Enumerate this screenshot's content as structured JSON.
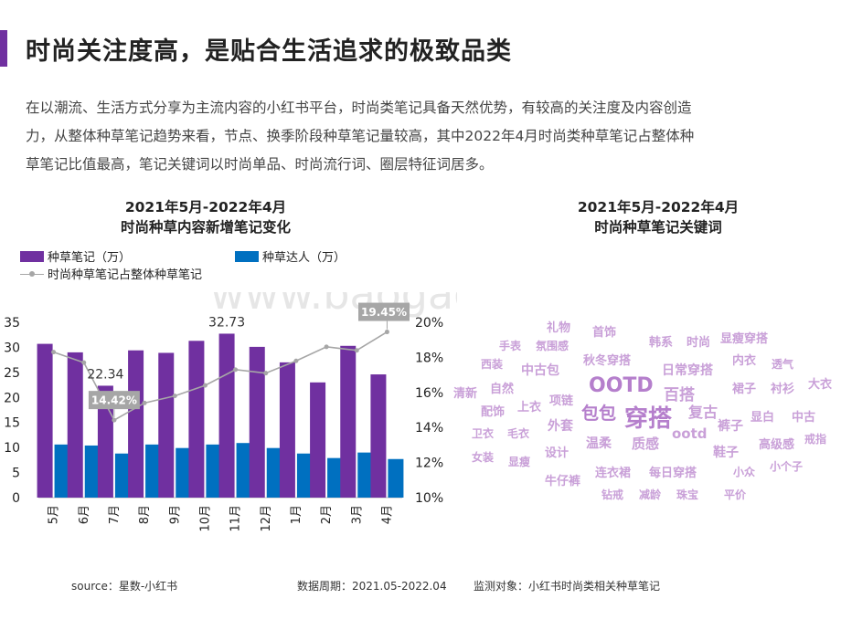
{
  "header": {
    "title": "时尚关注度高，是贴合生活追求的极致品类",
    "accent_color": "#7030a0"
  },
  "intro_lines": [
    "在以潮流、生活方式分享为主流内容的小红书平台，时尚类笔记具备天然优势，有较高的关注度及内容创造",
    "力，从整体种草笔记趋势来看，节点、换季阶段种草笔记量较高，其中2022年4月时尚类种草笔记占整体种",
    "草笔记比值最高，笔记关键词以时尚单品、时尚流行词、圈层特征词居多。"
  ],
  "watermark": "www.baogao8.com",
  "left_chart": {
    "title_line1": "2021年5月-2022年4月",
    "title_line2": "时尚种草内容新增笔记变化"
  },
  "right_chart": {
    "title_line1": "2021年5月-2022年4月",
    "title_line2": "时尚种草笔记关键词"
  },
  "legend": {
    "bar1": "种草笔记（万）",
    "bar2": "种草达人（万）",
    "line": "时尚种草笔记占整体种草笔记"
  },
  "chart_data": {
    "type": "bar",
    "categories": [
      "5月",
      "6月",
      "7月",
      "8月",
      "9月",
      "10月",
      "11月",
      "12月",
      "1月",
      "2月",
      "3月",
      "4月"
    ],
    "series": [
      {
        "name": "种草笔记（万）",
        "type": "bar",
        "axis": "left",
        "color": "#7030a0",
        "values": [
          30.7,
          29.0,
          22.34,
          29.4,
          28.9,
          31.3,
          32.73,
          30.1,
          27.0,
          23.0,
          30.3,
          24.6
        ]
      },
      {
        "name": "种草达人（万）",
        "type": "bar",
        "axis": "left",
        "color": "#0070c0",
        "values": [
          10.6,
          10.4,
          8.8,
          10.6,
          9.9,
          10.6,
          10.9,
          9.9,
          8.8,
          7.9,
          9.0,
          7.7
        ]
      },
      {
        "name": "时尚种草笔记占整体种草笔记",
        "type": "line",
        "axis": "right",
        "color": "#a6a6a6",
        "values": [
          18.3,
          17.7,
          14.42,
          15.4,
          15.8,
          16.4,
          17.3,
          17.1,
          17.8,
          18.6,
          18.4,
          19.45
        ]
      }
    ],
    "y_left": {
      "min": 0,
      "max": 35,
      "ticks": [
        "0",
        "5",
        "10",
        "15",
        "20",
        "25",
        "30",
        "35"
      ]
    },
    "y_right": {
      "min": 10,
      "max": 20,
      "ticks": [
        "10%",
        "12%",
        "14%",
        "16%",
        "18%",
        "20%"
      ]
    },
    "data_labels": [
      {
        "series": 0,
        "index": 2,
        "text": "22.34"
      },
      {
        "series": 0,
        "index": 6,
        "text": "32.73"
      }
    ],
    "callouts": [
      {
        "series": 2,
        "index": 2,
        "text": "14.42%"
      },
      {
        "series": 2,
        "index": 11,
        "text": "19.45%"
      }
    ],
    "grid": false,
    "legend_position": "top-left"
  },
  "keywords": [
    {
      "text": "礼物",
      "size": 13
    },
    {
      "text": "首饰",
      "size": 13
    },
    {
      "text": "韩系",
      "size": 13
    },
    {
      "text": "时尚",
      "size": 13
    },
    {
      "text": "显瘦穿搭",
      "size": 13
    },
    {
      "text": "手表",
      "size": 12
    },
    {
      "text": "氛围感",
      "size": 12
    },
    {
      "text": "秋冬穿搭",
      "size": 13
    },
    {
      "text": "内衣",
      "size": 13
    },
    {
      "text": "透气",
      "size": 12
    },
    {
      "text": "西装",
      "size": 12
    },
    {
      "text": "中古包",
      "size": 14
    },
    {
      "text": "日常穿搭",
      "size": 14
    },
    {
      "text": "裙子",
      "size": 13
    },
    {
      "text": "衬衫",
      "size": 13
    },
    {
      "text": "大衣",
      "size": 13
    },
    {
      "text": "清新",
      "size": 13
    },
    {
      "text": "自然",
      "size": 13
    },
    {
      "text": "OOTD",
      "size": 22
    },
    {
      "text": "百搭",
      "size": 17
    },
    {
      "text": "项链",
      "size": 13
    },
    {
      "text": "配饰",
      "size": 13
    },
    {
      "text": "上衣",
      "size": 13
    },
    {
      "text": "包包",
      "size": 19
    },
    {
      "text": "穿搭",
      "size": 26
    },
    {
      "text": "复古",
      "size": 16
    },
    {
      "text": "显白",
      "size": 13
    },
    {
      "text": "中古",
      "size": 13
    },
    {
      "text": "外套",
      "size": 14
    },
    {
      "text": "裤子",
      "size": 14
    },
    {
      "text": "卫衣",
      "size": 12
    },
    {
      "text": "毛衣",
      "size": 12
    },
    {
      "text": "ootd",
      "size": 15
    },
    {
      "text": "戒指",
      "size": 12
    },
    {
      "text": "温柔",
      "size": 14
    },
    {
      "text": "质感",
      "size": 15
    },
    {
      "text": "高级感",
      "size": 13
    },
    {
      "text": "女装",
      "size": 12
    },
    {
      "text": "设计",
      "size": 13
    },
    {
      "text": "鞋子",
      "size": 14
    },
    {
      "text": "显瘦",
      "size": 12
    },
    {
      "text": "小个子",
      "size": 12
    },
    {
      "text": "牛仔裤",
      "size": 13
    },
    {
      "text": "连衣裙",
      "size": 13
    },
    {
      "text": "每日穿搭",
      "size": 13
    },
    {
      "text": "小众",
      "size": 12
    },
    {
      "text": "钻戒",
      "size": 12
    },
    {
      "text": "减龄",
      "size": 12
    },
    {
      "text": "珠宝",
      "size": 12
    },
    {
      "text": "平价",
      "size": 12
    }
  ],
  "footer": {
    "source": "source：星数-小红书",
    "period": "数据周期：2021.05-2022.04",
    "target": "监测对象：小红书时尚类相关种草笔记"
  }
}
